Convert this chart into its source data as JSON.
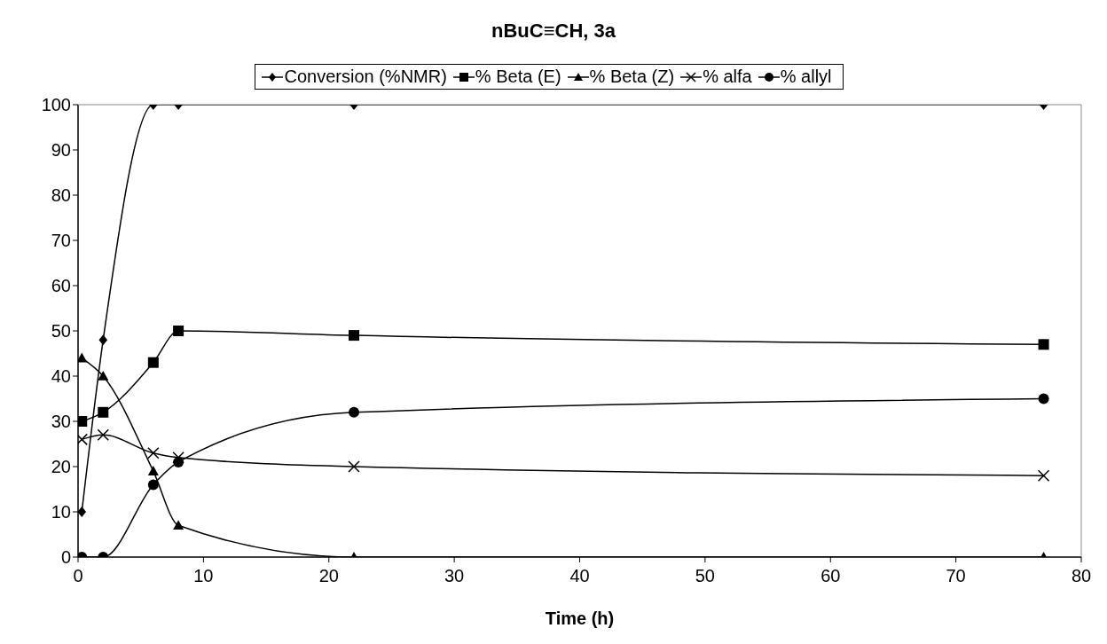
{
  "chart_data": {
    "type": "line",
    "title": "nBuC≡CH, 3a",
    "xlabel": "Time (h)",
    "x": [
      0.3,
      2,
      6,
      8,
      22,
      77
    ],
    "xlim": [
      0,
      80
    ],
    "xticks": [
      0,
      10,
      20,
      30,
      40,
      50,
      60,
      70,
      80
    ],
    "ylim": [
      0,
      100
    ],
    "yticks": [
      0,
      10,
      20,
      30,
      40,
      50,
      60,
      70,
      80,
      90,
      100
    ],
    "grid": false,
    "legend": "top",
    "series": [
      {
        "name": "Conversion (%NMR)",
        "color": "#000000",
        "marker": "diamond",
        "values": [
          10,
          48,
          100,
          100,
          100,
          100
        ]
      },
      {
        "name": "% Beta (E)",
        "color": "#000000",
        "marker": "square",
        "values": [
          30,
          32,
          43,
          50,
          49,
          47
        ]
      },
      {
        "name": "% Beta (Z)",
        "color": "#000000",
        "marker": "triangle",
        "values": [
          44,
          40,
          19,
          7,
          0,
          0
        ]
      },
      {
        "name": "% alfa",
        "color": "#000000",
        "marker": "cross",
        "values": [
          26,
          27,
          23,
          22,
          20,
          18
        ]
      },
      {
        "name": "% allyl",
        "color": "#000000",
        "marker": "circle",
        "values": [
          0,
          0,
          16,
          21,
          32,
          35
        ]
      }
    ]
  }
}
